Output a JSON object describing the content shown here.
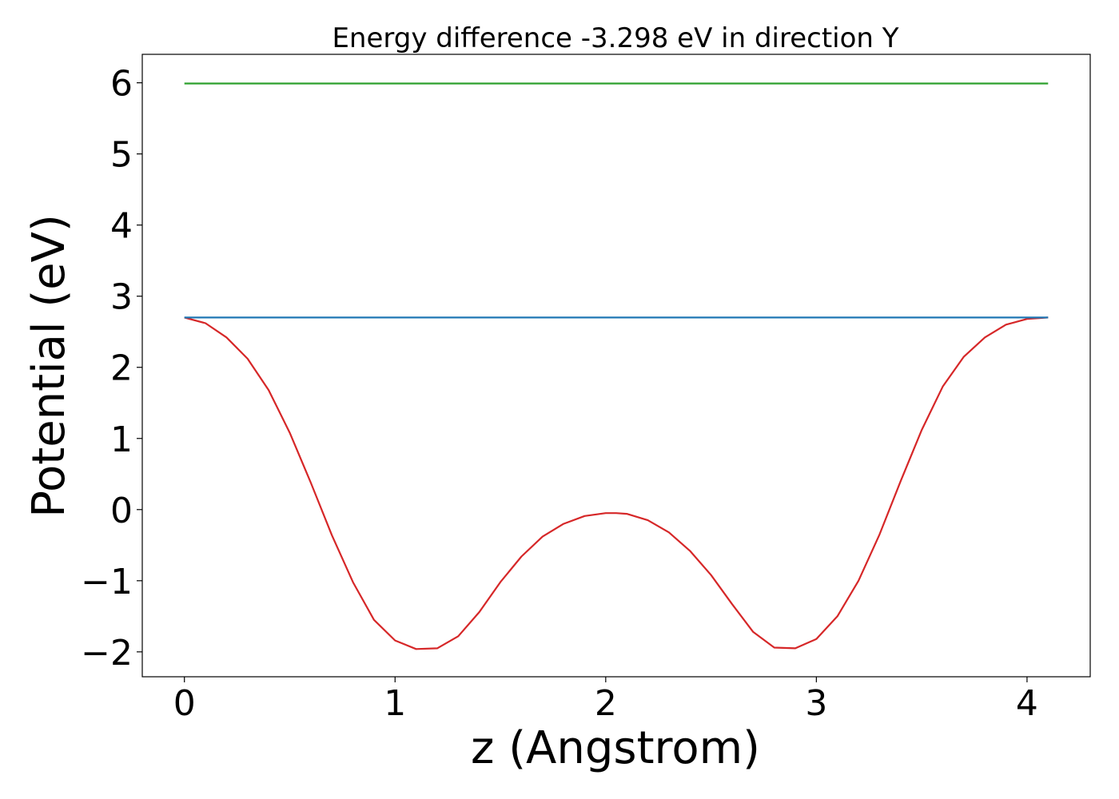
{
  "chart_data": {
    "type": "line",
    "title": "Energy difference -3.298 eV in direction Y",
    "xlabel": "z (Angstrom)",
    "ylabel": "Potential (eV)",
    "xlim": [
      -0.2,
      4.3
    ],
    "ylim": [
      -2.35,
      6.4
    ],
    "x_ticks": [
      0,
      1,
      2,
      3,
      4
    ],
    "x_tick_labels": [
      "0",
      "1",
      "2",
      "3",
      "4"
    ],
    "y_ticks": [
      -2,
      -1,
      0,
      1,
      2,
      3,
      4,
      5,
      6
    ],
    "y_tick_labels": [
      "−2",
      "−1",
      "0",
      "1",
      "2",
      "3",
      "4",
      "5",
      "6"
    ],
    "grid": false,
    "legend": false,
    "series": [
      {
        "color": "#d62728",
        "x": [
          0,
          0.1,
          0.2,
          0.3,
          0.4,
          0.5,
          0.6,
          0.7,
          0.8,
          0.9,
          1.0,
          1.1,
          1.2,
          1.3,
          1.4,
          1.5,
          1.6,
          1.7,
          1.8,
          1.9,
          2.0,
          2.05,
          2.1,
          2.2,
          2.3,
          2.4,
          2.5,
          2.6,
          2.7,
          2.8,
          2.9,
          3.0,
          3.1,
          3.2,
          3.3,
          3.4,
          3.5,
          3.6,
          3.7,
          3.8,
          3.9,
          4.0,
          4.1
        ],
        "y": [
          2.7,
          2.62,
          2.42,
          2.12,
          1.68,
          1.08,
          0.38,
          -0.36,
          -1.02,
          -1.55,
          -1.84,
          -1.96,
          -1.95,
          -1.78,
          -1.44,
          -1.02,
          -0.66,
          -0.38,
          -0.2,
          -0.09,
          -0.05,
          -0.05,
          -0.06,
          -0.15,
          -0.32,
          -0.58,
          -0.92,
          -1.33,
          -1.72,
          -1.94,
          -1.95,
          -1.82,
          -1.5,
          -1.0,
          -0.35,
          0.4,
          1.12,
          1.73,
          2.15,
          2.42,
          2.6,
          2.68,
          2.7
        ]
      },
      {
        "color": "#1f77b4",
        "x": [
          0,
          4.1
        ],
        "y": [
          2.7,
          2.7
        ]
      },
      {
        "color": "#2ca02c",
        "x": [
          0,
          4.1
        ],
        "y": [
          5.99,
          5.99
        ]
      }
    ]
  }
}
